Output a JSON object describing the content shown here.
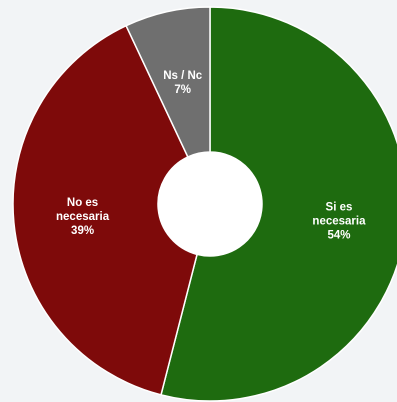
{
  "chart_data": {
    "type": "pie",
    "donut": true,
    "title": "",
    "slices": [
      {
        "label_lines": [
          "Si es",
          "necesaria",
          "54%"
        ],
        "value": 54,
        "color": "#1e6b0f"
      },
      {
        "label_lines": [
          "No es",
          "necesaria",
          "39%"
        ],
        "value": 39,
        "color": "#7e0a0a"
      },
      {
        "label_lines": [
          "Ns / Nc",
          "7%"
        ],
        "value": 7,
        "color": "#6f6f6f"
      }
    ],
    "start_angle_deg": 0,
    "direction": "clockwise",
    "legend": "none"
  }
}
